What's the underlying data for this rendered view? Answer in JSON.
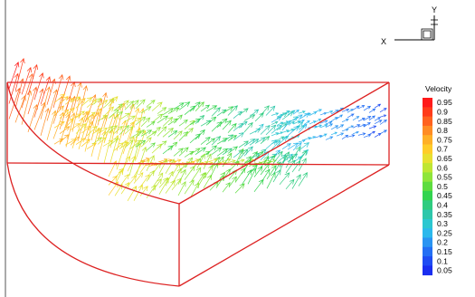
{
  "triad": {
    "y_label": "Y",
    "x_label": "X"
  },
  "legend": {
    "title": "Velocity",
    "levels": [
      "0.95",
      "0.9",
      "0.85",
      "0.8",
      "0.75",
      "0.7",
      "0.65",
      "0.6",
      "0.55",
      "0.5",
      "0.45",
      "0.4",
      "0.35",
      "0.3",
      "0.25",
      "0.2",
      "0.15",
      "0.1",
      "0.05"
    ],
    "colors": [
      "#ff1a1a",
      "#ff3b1a",
      "#ff621f",
      "#ff8c24",
      "#ffb027",
      "#ffcc29",
      "#e8e030",
      "#bfe633",
      "#8fe53a",
      "#5ddc3f",
      "#33d44f",
      "#2fcc80",
      "#2ec7ab",
      "#2cc7d0",
      "#2cb8ec",
      "#2a94f2",
      "#246ff4",
      "#1f4cf3",
      "#1a2ef0"
    ]
  },
  "frame_color": "#dd2222"
}
